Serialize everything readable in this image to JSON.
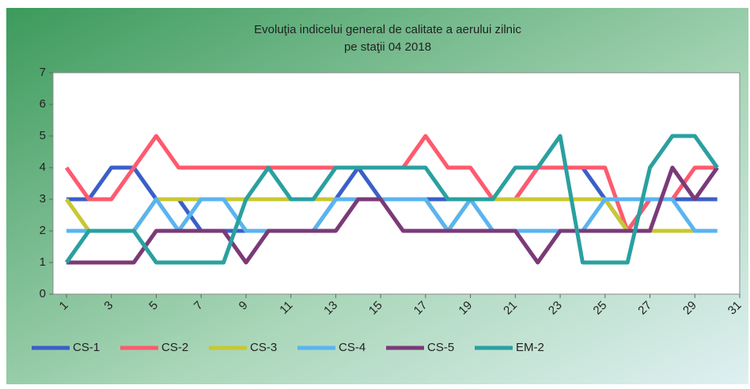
{
  "chart_data": {
    "type": "line",
    "title": "Evoluţia indicelui general de calitate a aerului zilnic",
    "subtitle": "pe staţii 04 2018",
    "x": [
      1,
      2,
      3,
      4,
      5,
      6,
      7,
      8,
      9,
      10,
      11,
      12,
      13,
      14,
      15,
      16,
      17,
      18,
      19,
      20,
      21,
      22,
      23,
      24,
      25,
      26,
      27,
      28,
      29,
      30
    ],
    "xlim": [
      0.4,
      31
    ],
    "xticks": [
      1,
      3,
      5,
      7,
      9,
      11,
      13,
      15,
      17,
      19,
      21,
      23,
      25,
      27,
      29,
      31
    ],
    "ylim": [
      0,
      7
    ],
    "yticks": [
      0,
      1,
      2,
      3,
      4,
      5,
      6,
      7
    ],
    "legend": "bottom",
    "series": [
      {
        "name": "CS-1",
        "color": "#3a5fc8",
        "values": [
          3,
          3,
          4,
          4,
          3,
          3,
          2,
          2,
          2,
          2,
          2,
          2,
          3,
          4,
          3,
          3,
          3,
          3,
          3,
          3,
          3,
          4,
          4,
          4,
          3,
          2,
          3,
          3,
          3,
          3
        ]
      },
      {
        "name": "CS-2",
        "color": "#ff5a6e",
        "values": [
          4,
          3,
          3,
          4,
          5,
          4,
          4,
          4,
          4,
          4,
          4,
          4,
          4,
          4,
          4,
          4,
          5,
          4,
          4,
          3,
          3,
          4,
          4,
          4,
          4,
          2,
          3,
          3,
          4,
          4
        ]
      },
      {
        "name": "CS-3",
        "color": "#c8c832",
        "values": [
          3,
          2,
          2,
          2,
          3,
          3,
          3,
          3,
          3,
          3,
          3,
          3,
          3,
          3,
          3,
          3,
          3,
          2,
          3,
          3,
          3,
          3,
          3,
          3,
          3,
          2,
          2,
          2,
          2,
          2
        ]
      },
      {
        "name": "CS-4",
        "color": "#5ab4f0",
        "values": [
          2,
          2,
          2,
          2,
          3,
          2,
          3,
          3,
          2,
          2,
          2,
          2,
          3,
          3,
          3,
          3,
          3,
          2,
          3,
          2,
          2,
          2,
          2,
          2,
          3,
          3,
          3,
          3,
          2,
          2
        ]
      },
      {
        "name": "CS-5",
        "color": "#7a3a78",
        "values": [
          1,
          1,
          1,
          1,
          2,
          2,
          2,
          2,
          1,
          2,
          2,
          2,
          2,
          3,
          3,
          2,
          2,
          2,
          2,
          2,
          2,
          1,
          2,
          2,
          2,
          2,
          2,
          4,
          3,
          4
        ]
      },
      {
        "name": "EM-2",
        "color": "#2aa0a0",
        "values": [
          1,
          2,
          2,
          2,
          1,
          1,
          1,
          1,
          3,
          4,
          3,
          3,
          4,
          4,
          4,
          4,
          4,
          3,
          3,
          3,
          4,
          4,
          5,
          1,
          1,
          1,
          4,
          5,
          5,
          4
        ]
      }
    ]
  }
}
